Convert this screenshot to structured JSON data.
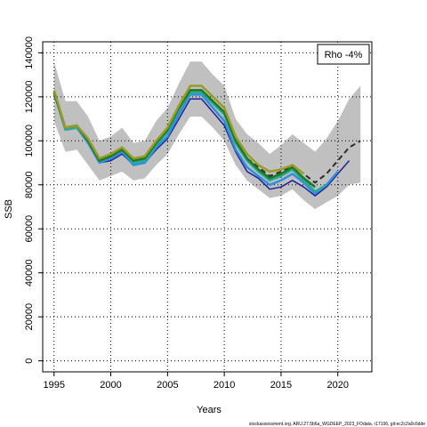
{
  "chart_data": {
    "type": "line",
    "xlabel": "Years",
    "ylabel": "SSB",
    "xlim": [
      1994,
      2023
    ],
    "ylim": [
      -5000,
      145000
    ],
    "x_ticks": [
      1995,
      2000,
      2005,
      2010,
      2015,
      2020
    ],
    "y_ticks": [
      0,
      20000,
      40000,
      60000,
      80000,
      100000,
      120000,
      140000
    ],
    "grid": true,
    "legend": {
      "text": "Rho -4%",
      "placement": "top-right"
    },
    "footer": "stockassessment.org, ARU.27.5b6a_WGDEEP_2023_FOdata, r17106, git:ec2c2a0c6dde",
    "confidence_band": {
      "x": [
        1995,
        1996,
        1997,
        1998,
        1999,
        2000,
        2001,
        2002,
        2003,
        2004,
        2005,
        2006,
        2007,
        2008,
        2009,
        2010,
        2011,
        2012,
        2013,
        2014,
        2015,
        2016,
        2017,
        2018,
        2019,
        2020,
        2021,
        2022
      ],
      "upper": [
        136000,
        118000,
        118000,
        111000,
        100000,
        102000,
        106000,
        99000,
        100000,
        109000,
        115000,
        126000,
        136000,
        136000,
        130000,
        125000,
        110000,
        103000,
        99000,
        94000,
        98000,
        103000,
        99000,
        95000,
        101000,
        109000,
        119000,
        125000
      ],
      "lower": [
        109000,
        95000,
        96000,
        89000,
        82000,
        84000,
        86000,
        82000,
        83000,
        89000,
        94000,
        103000,
        111000,
        111000,
        106000,
        100000,
        89000,
        82000,
        78000,
        74000,
        75000,
        78000,
        73000,
        69000,
        72000,
        75000,
        80000,
        81000
      ]
    },
    "series": [
      {
        "color": "#2b2b2b",
        "dashed": true,
        "x": [
          1995,
          1996,
          1997,
          1998,
          1999,
          2000,
          2001,
          2002,
          2003,
          2004,
          2005,
          2006,
          2007,
          2008,
          2009,
          2010,
          2011,
          2012,
          2013,
          2014,
          2015,
          2016,
          2017,
          2018,
          2019,
          2020,
          2021,
          2022
        ],
        "y": [
          122000,
          106000,
          107000,
          100000,
          91000,
          93000,
          96000,
          91000,
          92000,
          99000,
          105000,
          115000,
          123000,
          123000,
          118000,
          113000,
          100000,
          92000,
          88000,
          84000,
          86000,
          89000,
          85000,
          81000,
          85000,
          91000,
          97000,
          100000
        ]
      },
      {
        "color": "#1f1f9f",
        "dashed": false,
        "x": [
          1995,
          1996,
          1997,
          1998,
          1999,
          2000,
          2001,
          2002,
          2003,
          2004,
          2005,
          2006,
          2007,
          2008,
          2009,
          2010,
          2011,
          2012,
          2013,
          2014,
          2015,
          2016,
          2017,
          2018,
          2019,
          2020,
          2021
        ],
        "y": [
          121000,
          105000,
          106000,
          99000,
          90000,
          91000,
          94000,
          89000,
          90000,
          96000,
          101000,
          110000,
          119000,
          119000,
          113000,
          107000,
          95000,
          86000,
          83000,
          78000,
          79000,
          82000,
          79000,
          75000,
          79000,
          85000,
          91000
        ]
      },
      {
        "color": "#2f8fd8",
        "dashed": false,
        "x": [
          1995,
          1996,
          1997,
          1998,
          1999,
          2000,
          2001,
          2002,
          2003,
          2004,
          2005,
          2006,
          2007,
          2008,
          2009,
          2010,
          2011,
          2012,
          2013,
          2014,
          2015,
          2016,
          2017,
          2018,
          2019,
          2020
        ],
        "y": [
          122000,
          105000,
          106000,
          99000,
          90000,
          92000,
          95000,
          89000,
          90000,
          97000,
          102000,
          112000,
          121000,
          121000,
          115000,
          109000,
          96000,
          88000,
          84000,
          80000,
          82000,
          85000,
          81000,
          76000,
          80000,
          86000
        ]
      },
      {
        "color": "#2aa89a",
        "dashed": false,
        "x": [
          1995,
          1996,
          1997,
          1998,
          1999,
          2000,
          2001,
          2002,
          2003,
          2004,
          2005,
          2006,
          2007,
          2008,
          2009,
          2010,
          2011,
          2012,
          2013,
          2014,
          2015,
          2016,
          2017,
          2018,
          2019
        ],
        "y": [
          122000,
          105000,
          106000,
          100000,
          91000,
          93000,
          96000,
          90000,
          91000,
          98000,
          104000,
          114000,
          122000,
          122000,
          117000,
          112000,
          99000,
          91000,
          86000,
          82000,
          84000,
          87000,
          82000,
          77000,
          80000
        ]
      },
      {
        "color": "#1e7a1e",
        "dashed": false,
        "x": [
          1995,
          1996,
          1997,
          1998,
          1999,
          2000,
          2001,
          2002,
          2003,
          2004,
          2005,
          2006,
          2007,
          2008,
          2009,
          2010,
          2011,
          2012,
          2013,
          2014,
          2015,
          2016,
          2017,
          2018
        ],
        "y": [
          122000,
          106000,
          107000,
          100000,
          91000,
          93000,
          96000,
          91000,
          92000,
          99000,
          105000,
          115000,
          123000,
          123000,
          118000,
          113000,
          100000,
          92000,
          87000,
          83000,
          85000,
          88000,
          83000,
          79000
        ]
      },
      {
        "color": "#9a9a28",
        "dashed": false,
        "x": [
          1995,
          1996,
          1997,
          1998,
          1999,
          2000,
          2001,
          2002,
          2003,
          2004,
          2005,
          2006,
          2007,
          2008,
          2009,
          2010,
          2011,
          2012,
          2013,
          2014,
          2015,
          2016,
          2017
        ],
        "y": [
          123000,
          106000,
          107000,
          101000,
          92000,
          94000,
          97000,
          92000,
          93000,
          100000,
          106000,
          116000,
          125000,
          125000,
          120000,
          115000,
          102000,
          94000,
          89000,
          86000,
          87000,
          89000,
          85000
        ]
      }
    ]
  }
}
